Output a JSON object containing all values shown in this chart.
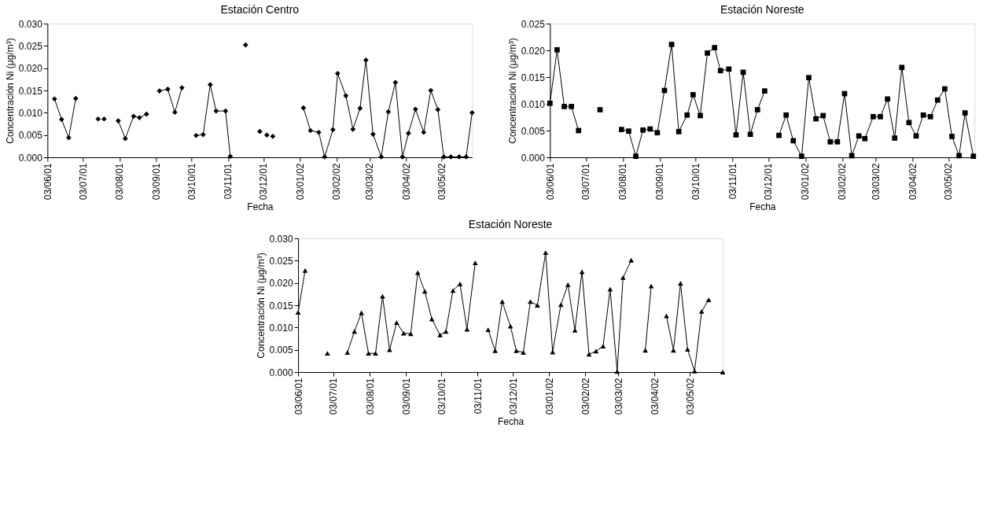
{
  "chart_data": [
    {
      "type": "line",
      "title": "Estación Centro",
      "xlabel": "Fecha",
      "ylabel": "Concentración Ni (μg/m³)",
      "marker": "diamond",
      "grid": false,
      "xlim": [
        "2001-06-03",
        "2002-05-29"
      ],
      "ylim": [
        0,
        0.03
      ],
      "xticks": [
        {
          "value": "2001-06-03",
          "label": "03/06/01"
        },
        {
          "value": "2001-07-03",
          "label": "03/07/01"
        },
        {
          "value": "2001-08-03",
          "label": "03/08/01"
        },
        {
          "value": "2001-09-03",
          "label": "03/09/01"
        },
        {
          "value": "2001-10-03",
          "label": "03/10/01"
        },
        {
          "value": "2001-11-03",
          "label": "03/11/01"
        },
        {
          "value": "2001-12-03",
          "label": "03/12/01"
        },
        {
          "value": "2002-01-03",
          "label": "03/01/02"
        },
        {
          "value": "2002-02-03",
          "label": "03/02/02"
        },
        {
          "value": "2002-03-03",
          "label": "03/03/02"
        },
        {
          "value": "2002-04-03",
          "label": "03/04/02"
        },
        {
          "value": "2002-05-03",
          "label": "03/05/02"
        }
      ],
      "yticks": [
        {
          "value": 0,
          "label": "0.000"
        },
        {
          "value": 0.005,
          "label": "0.005"
        },
        {
          "value": 0.01,
          "label": "0.010"
        },
        {
          "value": 0.015,
          "label": "0.015"
        },
        {
          "value": 0.02,
          "label": "0.020"
        },
        {
          "value": 0.025,
          "label": "0.025"
        },
        {
          "value": 0.03,
          "label": "0.030"
        }
      ],
      "x": [
        "2001-06-09",
        "2001-06-15",
        "2001-06-21",
        "2001-06-27",
        "2001-07-06",
        "2001-07-16",
        "2001-07-18",
        "2001-07-21",
        "2001-07-27",
        "2001-08-02",
        "2001-08-08",
        "2001-08-15",
        "2001-08-20",
        "2001-08-26",
        "2001-09-01",
        "2001-09-06",
        "2001-09-13",
        "2001-09-19",
        "2001-09-25",
        "2001-10-01",
        "2001-10-07",
        "2001-10-13",
        "2001-10-19",
        "2001-10-24",
        "2001-11-01",
        "2001-11-05",
        "2001-11-11",
        "2001-11-18",
        "2001-11-24",
        "2001-11-30",
        "2001-12-03",
        "2001-12-06",
        "2001-12-08",
        "2001-12-11",
        "2001-12-25",
        "2002-01-06",
        "2002-01-12",
        "2002-01-19",
        "2002-01-24",
        "2002-01-31",
        "2002-02-04",
        "2002-02-11",
        "2002-02-17",
        "2002-02-23",
        "2002-02-28",
        "2002-03-06",
        "2002-03-13",
        "2002-03-19",
        "2002-03-25",
        "2002-03-31",
        "2002-04-05",
        "2002-04-11",
        "2002-04-18",
        "2002-04-24",
        "2002-04-30",
        "2002-05-05",
        "2002-05-11",
        "2002-05-18",
        "2002-05-24",
        "2002-05-29"
      ],
      "series": [
        {
          "color": "#000000",
          "values": [
            0.0131,
            0.0085,
            0.0044,
            0.0132,
            null,
            0.0086,
            null,
            0.0086,
            null,
            0.0082,
            0.0042,
            0.0092,
            0.0089,
            0.0097,
            null,
            0.0149,
            0.0153,
            0.0101,
            0.0156,
            null,
            0.0049,
            0.0051,
            0.0163,
            0.0104,
            0.0104,
            0.0002,
            null,
            0.0252,
            null,
            0.0058,
            null,
            0.005,
            null,
            0.0047,
            null,
            0.0111,
            0.006,
            0.0056,
            0.0001,
            0.0062,
            0.0188,
            0.0138,
            0.0063,
            0.011,
            0.0218,
            0.0052,
            0.0001,
            0.0102,
            0.0168,
            0.0001,
            0.0054,
            0.0108,
            0.0056,
            0.015,
            0.0107,
            0.0001,
            0.0001,
            0.0001,
            0.0001,
            0.01
          ]
        }
      ]
    },
    {
      "type": "line",
      "title": "Estación Noreste",
      "xlabel": "Fecha",
      "ylabel": "Concentración Ni (μg/m³)",
      "marker": "square",
      "grid": false,
      "xlim": [
        "2001-06-03",
        "2002-05-25"
      ],
      "ylim": [
        0,
        0.025
      ],
      "xticks": [
        {
          "value": "2001-06-03",
          "label": "03/06/01"
        },
        {
          "value": "2001-07-03",
          "label": "03/07/01"
        },
        {
          "value": "2001-08-03",
          "label": "03/08/01"
        },
        {
          "value": "2001-09-03",
          "label": "03/09/01"
        },
        {
          "value": "2001-10-03",
          "label": "03/10/01"
        },
        {
          "value": "2001-11-03",
          "label": "03/11/01"
        },
        {
          "value": "2001-12-03",
          "label": "03/12/01"
        },
        {
          "value": "2002-01-03",
          "label": "03/01/02"
        },
        {
          "value": "2002-02-03",
          "label": "03/02/02"
        },
        {
          "value": "2002-03-03",
          "label": "03/03/02"
        },
        {
          "value": "2002-04-03",
          "label": "03/04/02"
        },
        {
          "value": "2002-05-03",
          "label": "03/05/02"
        }
      ],
      "yticks": [
        {
          "value": 0,
          "label": "0.000"
        },
        {
          "value": 0.005,
          "label": "0.005"
        },
        {
          "value": 0.01,
          "label": "0.010"
        },
        {
          "value": 0.015,
          "label": "0.015"
        },
        {
          "value": 0.02,
          "label": "0.020"
        },
        {
          "value": 0.025,
          "label": "0.025"
        }
      ],
      "x": [
        "2001-06-03",
        "2001-06-09",
        "2001-06-15",
        "2001-06-21",
        "2001-06-27",
        "2001-07-06",
        "2001-07-15",
        "2001-07-24",
        "2001-08-02",
        "2001-08-08",
        "2001-08-14",
        "2001-08-20",
        "2001-08-26",
        "2001-09-01",
        "2001-09-07",
        "2001-09-13",
        "2001-09-19",
        "2001-09-26",
        "2001-10-01",
        "2001-10-07",
        "2001-10-13",
        "2001-10-19",
        "2001-10-24",
        "2001-10-31",
        "2001-11-06",
        "2001-11-12",
        "2001-11-18",
        "2001-11-24",
        "2001-11-30",
        "2001-12-06",
        "2001-12-12",
        "2001-12-18",
        "2001-12-24",
        "2001-12-31",
        "2002-01-06",
        "2002-01-12",
        "2002-01-18",
        "2002-01-24",
        "2002-01-30",
        "2002-02-05",
        "2002-02-11",
        "2002-02-17",
        "2002-02-22",
        "2002-03-01",
        "2002-03-07",
        "2002-03-13",
        "2002-03-19",
        "2002-03-25",
        "2002-03-31",
        "2002-04-06",
        "2002-04-12",
        "2002-04-18",
        "2002-04-24",
        "2002-04-30",
        "2002-05-06",
        "2002-05-12",
        "2002-05-17",
        "2002-05-24"
      ],
      "series": [
        {
          "color": "#000000",
          "values": [
            0.0101,
            0.0201,
            0.0095,
            0.0095,
            0.005,
            null,
            0.0089,
            null,
            0.0052,
            0.0049,
            0.0002,
            0.0051,
            0.0053,
            0.0046,
            0.0125,
            0.0211,
            0.0048,
            0.0079,
            0.0117,
            0.0078,
            0.0195,
            0.0205,
            0.0162,
            0.0165,
            0.0042,
            0.0159,
            0.0043,
            0.0089,
            0.0124,
            null,
            0.0041,
            0.0079,
            0.0031,
            0.0002,
            0.0149,
            0.0072,
            0.0078,
            0.0029,
            0.0029,
            0.0119,
            0.0003,
            0.004,
            0.0035,
            0.0076,
            0.0076,
            0.0109,
            0.0036,
            0.0168,
            0.0065,
            0.004,
            0.0079,
            0.0076,
            0.0107,
            0.0128,
            0.0039,
            0.0003,
            0.0083,
            0.0002
          ]
        }
      ]
    },
    {
      "type": "line",
      "title": "Estación Noreste",
      "xlabel": "Fecha",
      "ylabel": "Concentración Ni (μg/m³)",
      "marker": "triangle",
      "grid": false,
      "xlim": [
        "2001-06-03",
        "2002-05-31"
      ],
      "ylim": [
        0,
        0.03
      ],
      "xticks": [
        {
          "value": "2001-06-03",
          "label": "03/06/01"
        },
        {
          "value": "2001-07-03",
          "label": "03/07/01"
        },
        {
          "value": "2001-08-03",
          "label": "03/08/01"
        },
        {
          "value": "2001-09-03",
          "label": "03/09/01"
        },
        {
          "value": "2001-10-03",
          "label": "03/10/01"
        },
        {
          "value": "2001-11-03",
          "label": "03/11/01"
        },
        {
          "value": "2001-12-03",
          "label": "03/12/01"
        },
        {
          "value": "2002-01-03",
          "label": "03/01/02"
        },
        {
          "value": "2002-02-03",
          "label": "03/02/02"
        },
        {
          "value": "2002-03-03",
          "label": "03/03/02"
        },
        {
          "value": "2002-04-03",
          "label": "03/04/02"
        },
        {
          "value": "2002-05-03",
          "label": "03/05/02"
        }
      ],
      "yticks": [
        {
          "value": 0,
          "label": "0.000"
        },
        {
          "value": 0.005,
          "label": "0.005"
        },
        {
          "value": 0.01,
          "label": "0.010"
        },
        {
          "value": 0.015,
          "label": "0.015"
        },
        {
          "value": 0.02,
          "label": "0.020"
        },
        {
          "value": 0.025,
          "label": "0.025"
        },
        {
          "value": 0.03,
          "label": "0.030"
        }
      ],
      "x": [
        "2001-06-03",
        "2001-06-09",
        "2001-06-18",
        "2001-06-28",
        "2001-07-07",
        "2001-07-15",
        "2001-07-21",
        "2001-07-27",
        "2001-08-02",
        "2001-08-08",
        "2001-08-14",
        "2001-08-20",
        "2001-08-26",
        "2001-09-01",
        "2001-09-07",
        "2001-09-13",
        "2001-09-19",
        "2001-09-25",
        "2001-10-02",
        "2001-10-07",
        "2001-10-13",
        "2001-10-19",
        "2001-10-25",
        "2001-11-01",
        "2001-11-06",
        "2001-11-12",
        "2001-11-18",
        "2001-11-24",
        "2001-12-01",
        "2001-12-06",
        "2001-12-12",
        "2001-12-18",
        "2001-12-24",
        "2001-12-31",
        "2002-01-06",
        "2002-01-13",
        "2002-01-19",
        "2002-01-25",
        "2002-01-31",
        "2002-02-06",
        "2002-02-12",
        "2002-02-18",
        "2002-02-24",
        "2002-03-02",
        "2002-03-07",
        "2002-03-14",
        "2002-03-20",
        "2002-03-26",
        "2002-03-31",
        "2002-04-06",
        "2002-04-13",
        "2002-04-19",
        "2002-04-25",
        "2002-05-01",
        "2002-05-07",
        "2002-05-13",
        "2002-05-19",
        "2002-05-25",
        "2002-05-31"
      ],
      "series": [
        {
          "color": "#000000",
          "values": [
            0.0134,
            0.0228,
            null,
            0.0042,
            null,
            0.0044,
            0.0091,
            0.0133,
            0.0042,
            0.0042,
            0.017,
            0.005,
            0.0111,
            0.0087,
            0.0086,
            0.0223,
            0.0181,
            0.0119,
            0.0083,
            0.0091,
            0.0183,
            0.0198,
            0.0096,
            0.0245,
            null,
            0.0095,
            0.0048,
            0.0158,
            0.0103,
            0.0048,
            0.0044,
            0.0158,
            0.015,
            0.0268,
            0.0045,
            0.0151,
            0.0196,
            0.0094,
            0.0225,
            0.004,
            0.0047,
            0.0058,
            0.0186,
            0.0001,
            0.0212,
            0.0251,
            null,
            0.0049,
            0.0193,
            null,
            0.0126,
            0.0049,
            0.0199,
            0.0051,
            0.0002,
            0.0136,
            0.0162,
            null,
            0.0
          ]
        }
      ]
    }
  ]
}
